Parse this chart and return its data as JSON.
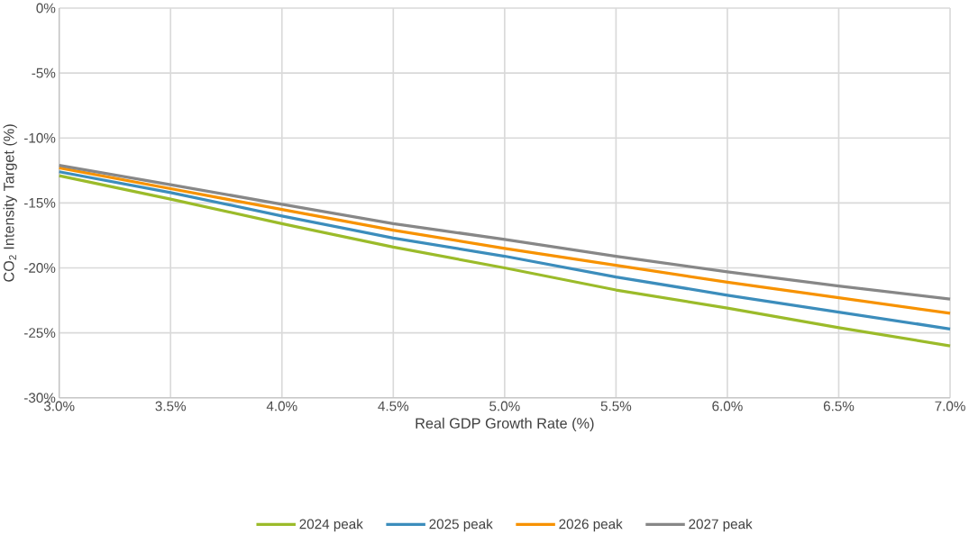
{
  "chart_data": {
    "type": "line",
    "xlabel": "Real GDP Growth Rate (%)",
    "ylabel": "CO$_{2}$ Intensity Target (%)",
    "x": [
      3.0,
      3.5,
      4.0,
      4.5,
      5.0,
      5.5,
      6.0,
      6.5,
      7.0
    ],
    "series": [
      {
        "name": "2024 peak",
        "color": "#9bbb2a",
        "values": [
          -12.9,
          -14.7,
          -16.6,
          -18.4,
          -20.0,
          -21.7,
          -23.1,
          -24.6,
          -26.0
        ]
      },
      {
        "name": "2025 peak",
        "color": "#3c8dbc",
        "values": [
          -12.6,
          -14.2,
          -16.0,
          -17.7,
          -19.1,
          -20.7,
          -22.1,
          -23.4,
          -24.7
        ]
      },
      {
        "name": "2026 peak",
        "color": "#f79200",
        "values": [
          -12.3,
          -13.9,
          -15.5,
          -17.1,
          -18.5,
          -19.8,
          -21.1,
          -22.3,
          -23.5
        ]
      },
      {
        "name": "2027 peak",
        "color": "#878787",
        "values": [
          -12.1,
          -13.6,
          -15.1,
          -16.6,
          -17.8,
          -19.1,
          -20.3,
          -21.4,
          -22.4
        ]
      }
    ],
    "xlim": [
      3.0,
      7.0
    ],
    "ylim": [
      -30,
      0
    ],
    "xticks": [
      {
        "value": 3.0,
        "label": "3.0%"
      },
      {
        "value": 3.5,
        "label": "3.5%"
      },
      {
        "value": 4.0,
        "label": "4.0%"
      },
      {
        "value": 4.5,
        "label": "4.5%"
      },
      {
        "value": 5.0,
        "label": "5.0%"
      },
      {
        "value": 5.5,
        "label": "5.5%"
      },
      {
        "value": 6.0,
        "label": "6.0%"
      },
      {
        "value": 6.5,
        "label": "6.5%"
      },
      {
        "value": 7.0,
        "label": "7.0%"
      }
    ],
    "yticks": [
      {
        "value": 0,
        "label": "0%"
      },
      {
        "value": -5,
        "label": "-5%"
      },
      {
        "value": -10,
        "label": "-10%"
      },
      {
        "value": -15,
        "label": "-15%"
      },
      {
        "value": -20,
        "label": "-20%"
      },
      {
        "value": -25,
        "label": "-25%"
      },
      {
        "value": -30,
        "label": "-30%"
      }
    ],
    "grid": true,
    "legend": "bottom",
    "marker": "none",
    "line_style": "solid"
  }
}
